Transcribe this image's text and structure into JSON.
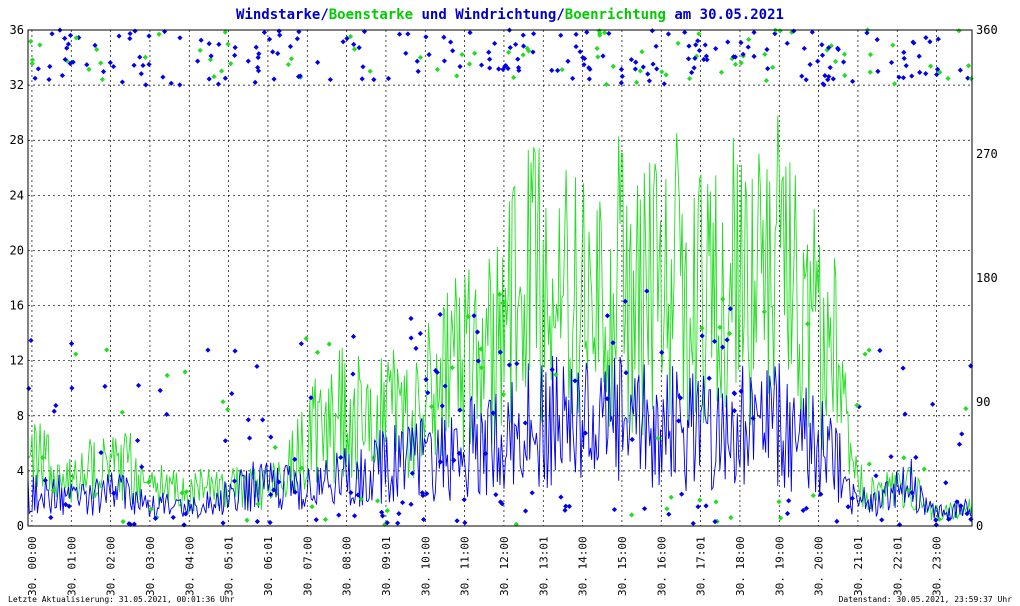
{
  "chart_data": {
    "type": "scatter",
    "title_parts": [
      {
        "text": "Windstarke",
        "color": "#0000cc"
      },
      {
        "text": "/",
        "color": "#0000cc"
      },
      {
        "text": "Boenstarke",
        "color": "#00cc00"
      },
      {
        "text": " und ",
        "color": "#0000cc"
      },
      {
        "text": "Windrichtung",
        "color": "#0000cc"
      },
      {
        "text": "/",
        "color": "#0000cc"
      },
      {
        "text": "Boenrichtung",
        "color": "#00cc00"
      },
      {
        "text": " am 30.05.2021",
        "color": "#0000cc"
      }
    ],
    "left_axis": {
      "ticks": [
        0,
        4,
        8,
        12,
        16,
        20,
        24,
        28,
        32,
        36
      ],
      "range": [
        0,
        36
      ]
    },
    "right_axis": {
      "ticks": [
        0,
        90,
        180,
        270,
        360
      ],
      "range": [
        0,
        360
      ]
    },
    "x_ticks": [
      "30. 00:00",
      "30. 01:00",
      "30. 02:00",
      "30. 03:00",
      "30. 04:00",
      "30. 05:01",
      "30. 06:01",
      "30. 07:00",
      "30. 08:00",
      "30. 09:01",
      "30. 10:00",
      "30. 11:00",
      "30. 12:00",
      "30. 13:01",
      "30. 14:00",
      "30. 15:00",
      "30. 16:00",
      "30. 17:01",
      "30. 18:00",
      "30. 19:00",
      "30. 20:00",
      "30. 21:01",
      "30. 22:01",
      "30. 23:00"
    ],
    "x_range_hours": [
      0,
      24
    ],
    "grid": true,
    "colors": {
      "wind": "#0000ee",
      "gust": "#22dd22",
      "grid": "#000000"
    },
    "series": [
      {
        "name": "Windstarke",
        "color": "#0000ee",
        "kind": "line",
        "x": [
          0,
          0.5,
          1,
          1.5,
          2,
          2.5,
          3,
          3.5,
          4,
          4.5,
          5,
          5.5,
          6,
          6.5,
          7,
          7.5,
          8,
          8.5,
          9,
          9.5,
          10,
          10.5,
          11,
          11.5,
          12,
          12.5,
          13,
          13.5,
          14,
          14.5,
          15,
          15.5,
          16,
          16.5,
          17,
          17.5,
          18,
          18.5,
          19,
          19.5,
          20,
          20.5,
          21,
          21.5,
          22,
          22.5,
          23,
          23.5,
          24
        ],
        "y": [
          2.5,
          2.5,
          2.2,
          2.0,
          2.5,
          2.2,
          1.5,
          1.5,
          1.2,
          1.5,
          2.0,
          2.8,
          3.0,
          2.8,
          2.5,
          3.0,
          3.5,
          4.0,
          4.5,
          4.5,
          5.0,
          5.0,
          5.5,
          6.0,
          6.5,
          7.0,
          7.5,
          7.5,
          7.5,
          7.0,
          7.5,
          7.0,
          7.5,
          7.0,
          7.5,
          7.0,
          7.5,
          7.0,
          7.5,
          6.5,
          6.0,
          5.0,
          2.0,
          1.5,
          2.5,
          3.0,
          1.0,
          1.2,
          1.5
        ]
      },
      {
        "name": "Boenstarke",
        "color": "#22dd22",
        "kind": "line",
        "x": [
          0,
          0.5,
          1,
          1.5,
          2,
          2.5,
          3,
          3.5,
          4,
          4.5,
          5,
          5.5,
          6,
          6.5,
          7,
          7.5,
          8,
          8.5,
          9,
          9.5,
          10,
          10.5,
          11,
          11.5,
          12,
          12.5,
          13,
          13.5,
          14,
          14.5,
          15,
          15.5,
          16,
          16.5,
          17,
          17.5,
          18,
          18.5,
          19,
          19.5,
          20,
          20.5,
          21,
          21.5,
          22,
          22.5,
          23,
          23.5,
          24
        ],
        "y": [
          6.0,
          5.0,
          4.0,
          4.5,
          4.5,
          5.0,
          3.5,
          3.0,
          2.5,
          3.0,
          3.0,
          3.0,
          3.0,
          3.5,
          7.5,
          8.0,
          9.0,
          8.5,
          9.0,
          9.0,
          10.0,
          11.0,
          14.0,
          14.0,
          16.0,
          18.0,
          20.0,
          19.0,
          18.0,
          18.0,
          20.0,
          18.0,
          19.0,
          20.0,
          18.0,
          19.0,
          20.0,
          19.0,
          22.0,
          19.0,
          16.0,
          14.0,
          4.0,
          2.5,
          3.0,
          3.0,
          1.0,
          1.2,
          1.5
        ]
      }
    ]
  },
  "footer": {
    "left": "Letzte Aktualisierung: 31.05.2021, 00:01:36 Uhr",
    "right": "Datenstand: 30.05.2021, 23:59:37 Uhr"
  }
}
